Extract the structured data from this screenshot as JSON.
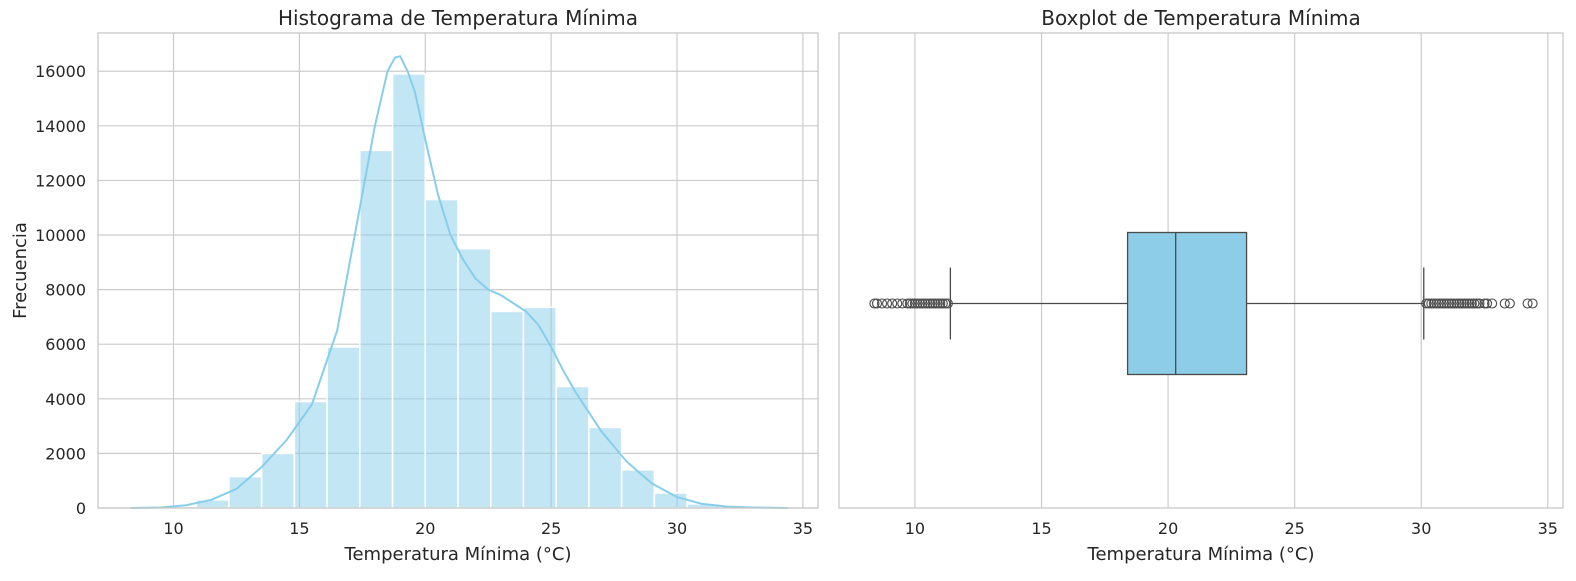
{
  "colors": {
    "bar_fill": "#87CEEB",
    "kde_line": "#87CEEB",
    "box_fill": "#8ECDE8",
    "box_edge": "#4a4a4a",
    "grid": "#cccccc",
    "frame": "#c8c8c8"
  },
  "chart_data": [
    {
      "type": "bar",
      "title": "Histograma de Temperatura Mínima",
      "xlabel": "Temperatura Mínima (°C)",
      "ylabel": "Frecuencia",
      "xlim": [
        7,
        35.6
      ],
      "ylim": [
        0,
        17400
      ],
      "xticks": [
        10,
        15,
        20,
        25,
        30,
        35
      ],
      "yticks": [
        0,
        2000,
        4000,
        6000,
        8000,
        10000,
        12000,
        14000,
        16000
      ],
      "grid": true,
      "bin_edges": [
        8.3,
        9.6,
        10.9,
        12.2,
        13.5,
        14.8,
        16.1,
        17.4,
        18.7,
        20.0,
        21.3,
        22.6,
        23.9,
        25.2,
        26.5,
        27.8,
        29.1,
        30.4,
        31.7,
        33.0,
        34.4
      ],
      "values": [
        20,
        60,
        300,
        1150,
        2000,
        3900,
        5900,
        13100,
        15900,
        11300,
        9500,
        7200,
        7350,
        4450,
        2950,
        1400,
        550,
        150,
        60,
        20
      ],
      "kde": {
        "x": [
          8.3,
          9.5,
          10.5,
          11.5,
          12.5,
          13.5,
          14.5,
          15.5,
          16.5,
          17.0,
          17.5,
          18.0,
          18.5,
          18.8,
          19.0,
          19.3,
          19.6,
          20.0,
          20.5,
          21.0,
          21.5,
          22.0,
          22.5,
          23.0,
          23.5,
          24.0,
          24.5,
          25.0,
          25.5,
          26.0,
          26.5,
          27.0,
          28.0,
          29.0,
          30.0,
          31.0,
          32.0,
          33.0,
          34.4
        ],
        "y": [
          0,
          20,
          100,
          300,
          700,
          1500,
          2500,
          3800,
          6500,
          9000,
          11500,
          14000,
          16000,
          16500,
          16550,
          16000,
          15200,
          13500,
          11500,
          10000,
          9100,
          8400,
          8000,
          7800,
          7500,
          7200,
          6700,
          5900,
          5000,
          4200,
          3500,
          2800,
          1700,
          900,
          400,
          150,
          50,
          20,
          0
        ]
      }
    },
    {
      "type": "box",
      "title": "Boxplot de Temperatura Mínima",
      "xlabel": "Temperatura Mínima (°C)",
      "xlim": [
        7,
        35.6
      ],
      "xticks": [
        10,
        15,
        20,
        25,
        30,
        35
      ],
      "grid": true,
      "whisker_low": 11.4,
      "q1": 18.4,
      "median": 20.3,
      "q3": 23.1,
      "whisker_high": 30.1,
      "outliers": [
        8.4,
        8.5,
        8.7,
        8.9,
        9.1,
        9.3,
        9.5,
        9.7,
        9.8,
        9.9,
        10.0,
        10.1,
        10.2,
        10.3,
        10.4,
        10.5,
        10.6,
        10.7,
        10.8,
        10.9,
        11.0,
        11.1,
        11.2,
        11.3,
        30.2,
        30.3,
        30.4,
        30.5,
        30.6,
        30.7,
        30.8,
        30.9,
        31.0,
        31.1,
        31.2,
        31.3,
        31.4,
        31.5,
        31.6,
        31.7,
        31.8,
        31.9,
        32.0,
        32.1,
        32.2,
        32.3,
        32.5,
        32.6,
        32.8,
        33.3,
        33.5,
        34.2,
        34.4
      ]
    }
  ]
}
